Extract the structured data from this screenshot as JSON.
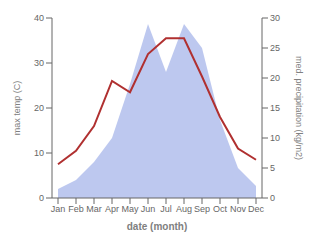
{
  "chart_data": {
    "type": "line",
    "categories": [
      "Jan",
      "Feb",
      "Mar",
      "Apr",
      "May",
      "Jun",
      "Jul",
      "Aug",
      "Sep",
      "Oct",
      "Nov",
      "Dec"
    ],
    "series": [
      {
        "type": "area",
        "axis": "y2",
        "color": "#bdc8ef",
        "values": [
          1.5,
          3.0,
          6.0,
          10.0,
          19.0,
          29.0,
          21.0,
          29.0,
          25.0,
          13.0,
          5.0,
          2.0
        ]
      },
      {
        "type": "line",
        "color": "#b03030",
        "values": [
          7.5,
          10.5,
          16.0,
          26.0,
          23.5,
          32.0,
          35.5,
          35.5,
          27.0,
          18.0,
          11.0,
          8.5
        ]
      }
    ],
    "xlabel": "date (month)",
    "ylabel": "max temp (C)",
    "y2label": "med. precipitation (kg/m2)",
    "ylim": [
      0,
      40
    ],
    "yticks": [
      0,
      10,
      20,
      30,
      40
    ],
    "y2lim": [
      0,
      30
    ],
    "y2ticks": [
      0,
      5,
      10,
      15,
      20,
      25,
      30
    ]
  }
}
